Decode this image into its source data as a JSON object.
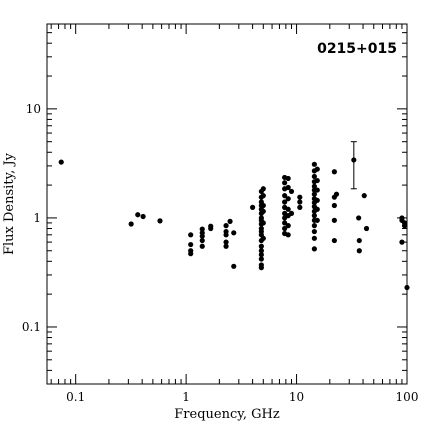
{
  "chart_data": {
    "type": "scatter",
    "title": "0215+015",
    "xlabel": "Frequency, GHz",
    "ylabel": "Flux Density, Jy",
    "x_scale": "log",
    "y_scale": "log",
    "xlim": [
      0.055,
      100
    ],
    "ylim": [
      0.03,
      60
    ],
    "x_ticks": [
      {
        "value": 0.1,
        "label": "0.1"
      },
      {
        "value": 1,
        "label": "1"
      },
      {
        "value": 10,
        "label": "10"
      },
      {
        "value": 100,
        "label": "100"
      }
    ],
    "y_ticks": [
      {
        "value": 0.1,
        "label": "0.1"
      },
      {
        "value": 1,
        "label": "1"
      },
      {
        "value": 10,
        "label": "10"
      }
    ],
    "grid": false,
    "marker_color": "#000000",
    "points": [
      [
        0.074,
        3.25
      ],
      [
        0.318,
        0.88
      ],
      [
        0.365,
        1.07
      ],
      [
        0.408,
        1.03
      ],
      [
        0.58,
        0.94
      ],
      [
        1.1,
        0.7
      ],
      [
        1.1,
        0.57
      ],
      [
        1.1,
        0.5
      ],
      [
        1.1,
        0.47
      ],
      [
        1.4,
        0.79
      ],
      [
        1.4,
        0.73
      ],
      [
        1.4,
        0.68
      ],
      [
        1.4,
        0.62
      ],
      [
        1.4,
        0.55
      ],
      [
        1.67,
        0.84
      ],
      [
        1.67,
        0.8
      ],
      [
        2.3,
        0.85
      ],
      [
        2.3,
        0.75
      ],
      [
        2.3,
        0.7
      ],
      [
        2.3,
        0.6
      ],
      [
        2.3,
        0.55
      ],
      [
        2.5,
        0.93
      ],
      [
        2.7,
        0.73
      ],
      [
        2.7,
        0.36
      ],
      [
        4.0,
        1.25
      ],
      [
        4.8,
        1.75
      ],
      [
        4.8,
        1.55
      ],
      [
        4.8,
        1.4
      ],
      [
        4.8,
        1.3
      ],
      [
        4.8,
        1.2
      ],
      [
        4.8,
        1.1
      ],
      [
        4.8,
        1.0
      ],
      [
        4.8,
        0.95
      ],
      [
        4.8,
        0.88
      ],
      [
        4.8,
        0.8
      ],
      [
        4.8,
        0.75
      ],
      [
        4.8,
        0.7
      ],
      [
        4.8,
        0.62
      ],
      [
        4.8,
        0.55
      ],
      [
        4.8,
        0.5
      ],
      [
        4.8,
        0.46
      ],
      [
        4.8,
        0.42
      ],
      [
        4.8,
        0.37
      ],
      [
        4.8,
        0.35
      ],
      [
        5.0,
        1.85
      ],
      [
        5.0,
        1.6
      ],
      [
        5.0,
        1.3
      ],
      [
        5.0,
        1.15
      ],
      [
        5.0,
        0.9
      ],
      [
        5.0,
        0.65
      ],
      [
        7.8,
        2.35
      ],
      [
        7.8,
        2.1
      ],
      [
        7.8,
        1.85
      ],
      [
        7.8,
        1.6
      ],
      [
        7.8,
        1.4
      ],
      [
        7.8,
        1.25
      ],
      [
        7.8,
        1.1
      ],
      [
        7.8,
        1.0
      ],
      [
        7.8,
        0.9
      ],
      [
        7.8,
        0.8
      ],
      [
        7.8,
        0.72
      ],
      [
        8.4,
        2.3
      ],
      [
        8.4,
        1.9
      ],
      [
        8.4,
        1.5
      ],
      [
        8.4,
        1.2
      ],
      [
        8.4,
        1.05
      ],
      [
        8.4,
        0.85
      ],
      [
        8.4,
        0.7
      ],
      [
        9.0,
        1.75
      ],
      [
        9.0,
        1.1
      ],
      [
        10.7,
        1.55
      ],
      [
        10.7,
        1.4
      ],
      [
        10.7,
        1.25
      ],
      [
        14.5,
        3.1
      ],
      [
        14.5,
        2.7
      ],
      [
        14.5,
        2.4
      ],
      [
        14.5,
        2.15
      ],
      [
        14.5,
        1.95
      ],
      [
        14.5,
        1.8
      ],
      [
        14.5,
        1.65
      ],
      [
        14.5,
        1.5
      ],
      [
        14.5,
        1.38
      ],
      [
        14.5,
        1.27
      ],
      [
        14.5,
        1.15
      ],
      [
        14.5,
        1.05
      ],
      [
        14.5,
        0.95
      ],
      [
        14.5,
        0.85
      ],
      [
        14.5,
        0.75
      ],
      [
        14.5,
        0.65
      ],
      [
        14.5,
        0.52
      ],
      [
        15.4,
        2.8
      ],
      [
        15.4,
        2.2
      ],
      [
        15.4,
        1.8
      ],
      [
        15.4,
        1.45
      ],
      [
        15.4,
        1.2
      ],
      [
        15.4,
        0.95
      ],
      [
        22.0,
        2.65
      ],
      [
        22.0,
        1.55
      ],
      [
        22.0,
        1.3
      ],
      [
        22.0,
        0.95
      ],
      [
        22.0,
        0.62
      ],
      [
        23.0,
        1.65
      ],
      [
        33.0,
        3.4
      ],
      [
        36.5,
        1.0
      ],
      [
        37.0,
        0.62
      ],
      [
        37.0,
        0.5
      ],
      [
        41.0,
        1.6
      ],
      [
        43.0,
        0.8
      ],
      [
        90.0,
        1.0
      ],
      [
        90.0,
        0.95
      ],
      [
        90.0,
        0.6
      ],
      [
        95.0,
        0.9
      ],
      [
        95.0,
        0.85
      ],
      [
        100.0,
        0.23
      ]
    ],
    "error_bars": [
      {
        "x": 33.0,
        "y": 3.4,
        "low": 1.85,
        "high": 5.0
      }
    ]
  }
}
